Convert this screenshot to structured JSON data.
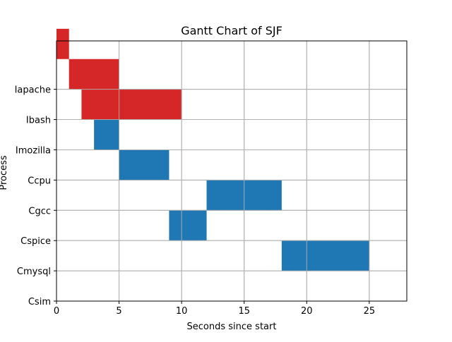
{
  "chart_data": {
    "type": "gantt",
    "title": "Gantt Chart of SJF",
    "xlabel": "Seconds since start",
    "ylabel": "Process",
    "xlim": [
      0,
      28
    ],
    "xticks": [
      0,
      5,
      10,
      15,
      20,
      25
    ],
    "grid": true,
    "categories": [
      "Csim",
      "Cmysql",
      "Cspice",
      "Cgcc",
      "Ccpu",
      "Imozilla",
      "Ibash",
      "Iapache"
    ],
    "colors": {
      "I": "#d62728",
      "C": "#1f77b4",
      "grid": "#b0b0b0"
    },
    "tasks": [
      {
        "start": 0,
        "end": 1,
        "level": 9,
        "group": "I"
      },
      {
        "start": 1,
        "end": 5,
        "level": 8,
        "group": "I"
      },
      {
        "start": 2,
        "end": 10,
        "level": 7,
        "group": "I"
      },
      {
        "start": 3,
        "end": 5,
        "level": 6,
        "group": "C"
      },
      {
        "start": 5,
        "end": 9,
        "level": 5,
        "group": "C"
      },
      {
        "start": 12,
        "end": 18,
        "level": 4,
        "group": "C"
      },
      {
        "start": 9,
        "end": 12,
        "level": 3,
        "group": "C"
      },
      {
        "start": 18,
        "end": 25,
        "level": 2,
        "group": "C"
      }
    ]
  }
}
